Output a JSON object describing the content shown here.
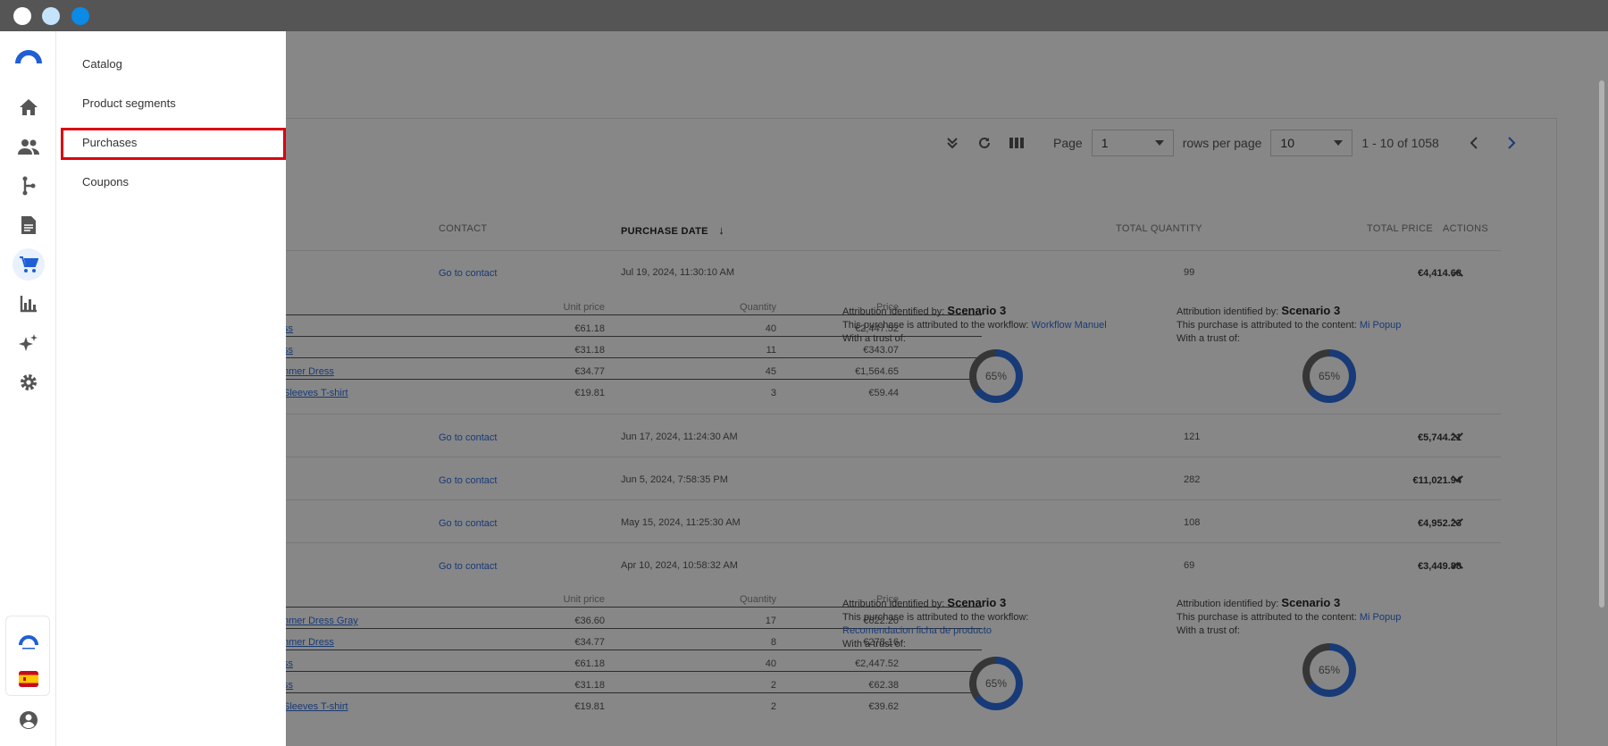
{
  "window": {
    "dots": [
      {
        "name": "close",
        "color": "#ffffff"
      },
      {
        "name": "minimize",
        "color": "#c5e3fb"
      },
      {
        "name": "maximize",
        "color": "#0b8ae6"
      }
    ]
  },
  "rail": {
    "items": [
      "logo-icon",
      "home-icon",
      "contacts-icon",
      "workflow-icon",
      "document-icon",
      "cart-icon",
      "chart-icon",
      "sparkle-icon",
      "gear-icon"
    ],
    "bottom": [
      "brand-badge-icon",
      "spain-flag-icon",
      "account-icon"
    ]
  },
  "submenu": {
    "items": [
      "Catalog",
      "Product segments",
      "Purchases",
      "Coupons"
    ],
    "selected": "Purchases",
    "highlight_color": "#d90012"
  },
  "toolbar": {
    "page_label": "Page",
    "page_value": "1",
    "rows_label": "rows per page",
    "rows_value": "10",
    "range_text": "1 - 10 of 1058"
  },
  "table": {
    "headers": {
      "contact": "CONTACT",
      "purchase_date": "PURCHASE DATE",
      "total_quantity": "TOTAL QUANTITY",
      "total_price": "TOTAL PRICE",
      "actions": "ACTIONS"
    },
    "rows": [
      {
        "contact": "Go to contact",
        "date": "Jul 19, 2024, 11:30:10 AM",
        "qty": "99",
        "price": "€4,414.68",
        "expanded": true
      },
      {
        "contact": "Go to contact",
        "date": "Jun 17, 2024, 11:24:30 AM",
        "qty": "121",
        "price": "€5,744.21",
        "expanded": false
      },
      {
        "contact": "Go to contact",
        "date": "Jun 5, 2024, 7:58:35 PM",
        "qty": "282",
        "price": "€11,021.94",
        "expanded": false
      },
      {
        "contact": "Go to contact",
        "date": "May 15, 2024, 11:25:30 AM",
        "qty": "108",
        "price": "€4,952.23",
        "expanded": false
      },
      {
        "contact": "Go to contact",
        "date": "Apr 10, 2024, 10:58:32 AM",
        "qty": "69",
        "price": "€3,449.88",
        "expanded": true
      }
    ],
    "detail_headers": {
      "unit_price": "Unit price",
      "quantity": "Quantity",
      "price": "Price"
    },
    "details": [
      {
        "items": [
          {
            "name": "ss",
            "unit": "€61.18",
            "qty": "40",
            "price": "€2,447.52"
          },
          {
            "name": "ss",
            "unit": "€31.18",
            "qty": "11",
            "price": "€343.07"
          },
          {
            "name": "nmer Dress",
            "unit": "€34.77",
            "qty": "45",
            "price": "€1,564.65"
          },
          {
            "name": "Sleeves T-shirt",
            "unit": "€19.81",
            "qty": "3",
            "price": "€59.44"
          }
        ],
        "attr_workflow": {
          "label": "Attribution identified by:",
          "scenario": "Scenario 3",
          "text": "This purchase is attributed to the workflow:",
          "target": "Workflow Manuel",
          "trust": "With a trust of:",
          "percent": "65%"
        },
        "attr_content": {
          "label": "Attribution identified by:",
          "scenario": "Scenario 3",
          "text": "This purchase is attributed to the content:",
          "target": "Mi Popup",
          "trust": "With a trust of:",
          "percent": "65%"
        }
      },
      {
        "items": [
          {
            "name": "nmer Dress Gray",
            "unit": "€36.60",
            "qty": "17",
            "price": "€622.20"
          },
          {
            "name": "nmer Dress",
            "unit": "€34.77",
            "qty": "8",
            "price": "€278.16"
          },
          {
            "name": "ss",
            "unit": "€61.18",
            "qty": "40",
            "price": "€2,447.52"
          },
          {
            "name": "ss",
            "unit": "€31.18",
            "qty": "2",
            "price": "€62.38"
          },
          {
            "name": "Sleeves T-shirt",
            "unit": "€19.81",
            "qty": "2",
            "price": "€39.62"
          }
        ],
        "attr_workflow": {
          "label": "Attribution identified by:",
          "scenario": "Scenario 3",
          "text": "This purchase is attributed to the workflow:",
          "target": "Recomendacion ficha de producto",
          "trust": "With a trust of:",
          "percent": "65%"
        },
        "attr_content": {
          "label": "Attribution identified by:",
          "scenario": "Scenario 3",
          "text": "This purchase is attributed to the content:",
          "target": "Mi Popup",
          "trust": "With a trust of:",
          "percent": "65%"
        }
      }
    ]
  }
}
